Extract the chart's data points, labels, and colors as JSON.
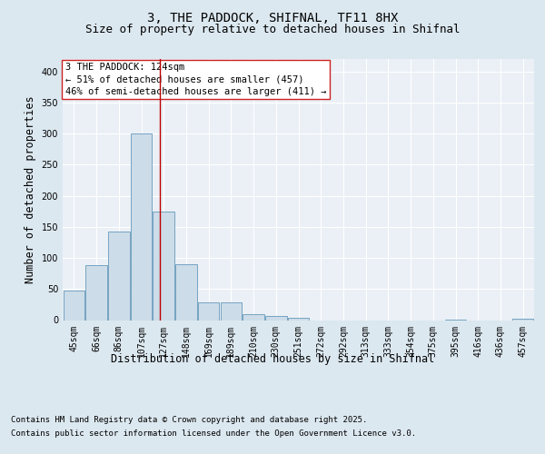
{
  "title_line1": "3, THE PADDOCK, SHIFNAL, TF11 8HX",
  "title_line2": "Size of property relative to detached houses in Shifnal",
  "xlabel": "Distribution of detached houses by size in Shifnal",
  "ylabel": "Number of detached properties",
  "categories": [
    "45sqm",
    "66sqm",
    "86sqm",
    "107sqm",
    "127sqm",
    "148sqm",
    "169sqm",
    "189sqm",
    "210sqm",
    "230sqm",
    "251sqm",
    "272sqm",
    "292sqm",
    "313sqm",
    "333sqm",
    "354sqm",
    "375sqm",
    "395sqm",
    "416sqm",
    "436sqm",
    "457sqm"
  ],
  "values": [
    47,
    88,
    143,
    300,
    175,
    90,
    28,
    28,
    10,
    7,
    4,
    0,
    0,
    0,
    0,
    0,
    0,
    1,
    0,
    0,
    2
  ],
  "bar_color": "#ccdce8",
  "bar_edge_color": "#6699bb",
  "vline_color": "#bb0000",
  "vline_x": 3.82,
  "annotation_text": "3 THE PADDOCK: 124sqm\n← 51% of detached houses are smaller (457)\n46% of semi-detached houses are larger (411) →",
  "annotation_box_facecolor": "#ffffff",
  "annotation_box_edgecolor": "#cc2222",
  "ylim": [
    0,
    420
  ],
  "yticks": [
    0,
    50,
    100,
    150,
    200,
    250,
    300,
    350,
    400
  ],
  "background_color": "#dce8f0",
  "plot_bg_color": "#eaf0f6",
  "grid_color": "#ffffff",
  "footer_line1": "Contains HM Land Registry data © Crown copyright and database right 2025.",
  "footer_line2": "Contains public sector information licensed under the Open Government Licence v3.0.",
  "title_fontsize": 10,
  "subtitle_fontsize": 9,
  "axis_label_fontsize": 8.5,
  "tick_fontsize": 7,
  "annotation_fontsize": 7.5,
  "footer_fontsize": 6.5
}
